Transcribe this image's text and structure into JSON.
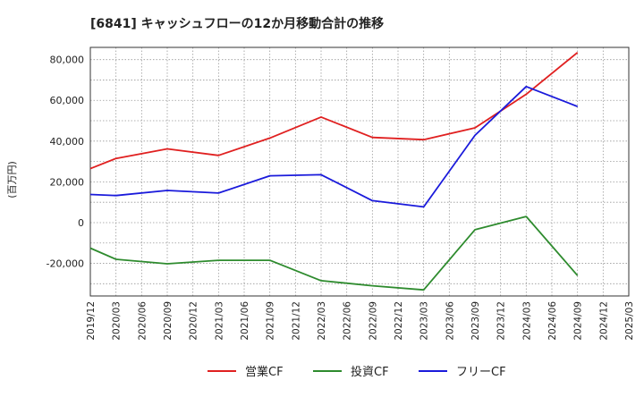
{
  "chart_data": {
    "type": "line",
    "title": "[6841]  キャッシュフローの12か月移動合計の推移",
    "ylabel": "(百万円)",
    "xlabel": "",
    "ylim": [
      -36000,
      86000
    ],
    "yticks": [
      -20000,
      0,
      20000,
      40000,
      60000,
      80000
    ],
    "ytick_labels": [
      "-20,000",
      "0",
      "20,000",
      "40,000",
      "60,000",
      "80,000"
    ],
    "categories": [
      "2019/12",
      "2020/03",
      "2020/06",
      "2020/09",
      "2020/12",
      "2021/03",
      "2021/06",
      "2021/09",
      "2021/12",
      "2022/03",
      "2022/06",
      "2022/09",
      "2022/12",
      "2023/03",
      "2023/06",
      "2023/09",
      "2023/12",
      "2024/03",
      "2024/06",
      "2024/09",
      "2024/12",
      "2025/03"
    ],
    "grid": true,
    "legend_position": "bottom",
    "series": [
      {
        "name": "営業CF",
        "color": "#e02020",
        "values": [
          26500,
          31500,
          null,
          36200,
          null,
          33000,
          null,
          41500,
          null,
          51800,
          null,
          41800,
          null,
          40700,
          null,
          46500,
          null,
          63000,
          null,
          83500,
          null,
          null
        ]
      },
      {
        "name": "投資CF",
        "color": "#2e8b2e",
        "values": [
          -12500,
          -18000,
          null,
          -20200,
          null,
          -18500,
          null,
          -18500,
          null,
          -28500,
          null,
          -31000,
          null,
          -33000,
          null,
          -3500,
          null,
          3000,
          null,
          -26000,
          null,
          null
        ]
      },
      {
        "name": "フリーCF",
        "color": "#1a1adb",
        "values": [
          13800,
          13300,
          null,
          15800,
          null,
          14500,
          null,
          23000,
          null,
          23500,
          null,
          10800,
          null,
          7700,
          null,
          42800,
          null,
          66800,
          null,
          57000,
          null,
          null
        ]
      }
    ]
  }
}
